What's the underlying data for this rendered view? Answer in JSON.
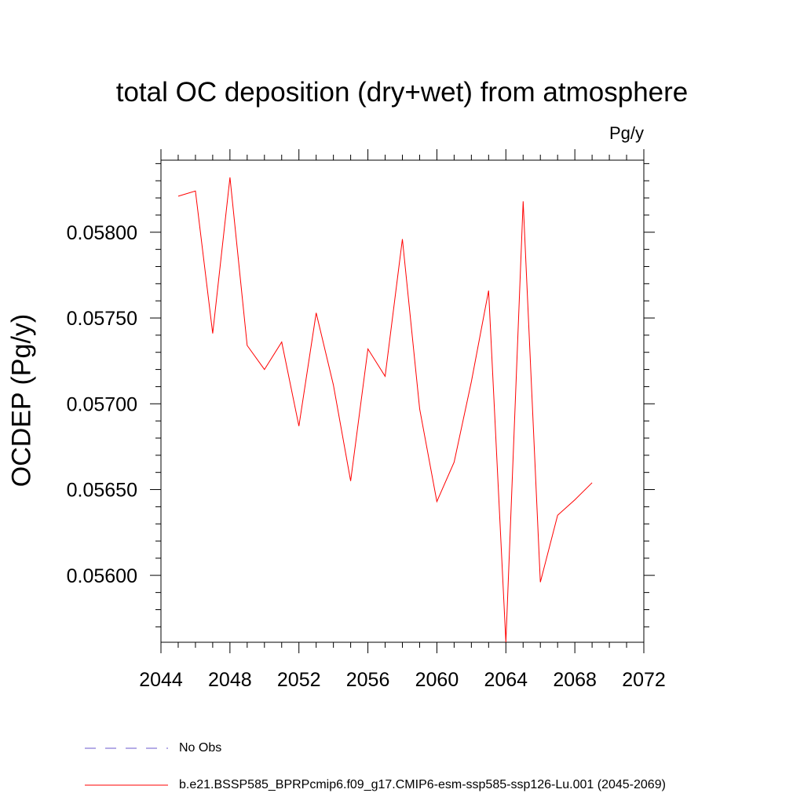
{
  "chart_data": {
    "type": "line",
    "title": "total OC deposition (dry+wet) from atmosphere",
    "units_label": "Pg/y",
    "ylabel": "OCDEP  (Pg/y)",
    "xlabel": "",
    "xlim": [
      2044,
      2072
    ],
    "ylim": [
      0.05561,
      0.05842
    ],
    "x_ticks": [
      2044,
      2048,
      2052,
      2056,
      2060,
      2064,
      2068,
      2072
    ],
    "x_tick_labels": [
      "2044",
      "2048",
      "2052",
      "2056",
      "2060",
      "2064",
      "2068",
      "2072"
    ],
    "y_ticks": [
      0.056,
      0.0565,
      0.057,
      0.0575,
      0.058
    ],
    "y_tick_labels": [
      "0.05600",
      "0.05650",
      "0.05700",
      "0.05750",
      "0.05800"
    ],
    "grid": false,
    "legend_position": "bottom-left",
    "series": [
      {
        "name": "b.e21.BSSP585_BPRPcmip6.f09_g17.CMIP6-esm-ssp585-ssp126-Lu.001 (2045-2069)",
        "color": "#ff0000",
        "style": "solid",
        "x": [
          2045,
          2046,
          2047,
          2048,
          2049,
          2050,
          2051,
          2052,
          2053,
          2054,
          2055,
          2056,
          2057,
          2058,
          2059,
          2060,
          2061,
          2062,
          2063,
          2064,
          2065,
          2066,
          2067,
          2068,
          2069
        ],
        "values": [
          0.05821,
          0.05824,
          0.05741,
          0.05832,
          0.05734,
          0.0572,
          0.05736,
          0.05687,
          0.05753,
          0.05711,
          0.05655,
          0.05732,
          0.05716,
          0.05796,
          0.05697,
          0.05643,
          0.05666,
          0.05713,
          0.05766,
          0.05561,
          0.05818,
          0.05596,
          0.05635,
          0.05644,
          0.05654
        ]
      }
    ],
    "legend": [
      {
        "label": "No Obs",
        "color": "#6a5acd",
        "style": "dashed"
      },
      {
        "label": "b.e21.BSSP585_BPRPcmip6.f09_g17.CMIP6-esm-ssp585-ssp126-Lu.001 (2045-2069)",
        "color": "#ff0000",
        "style": "solid"
      }
    ]
  }
}
